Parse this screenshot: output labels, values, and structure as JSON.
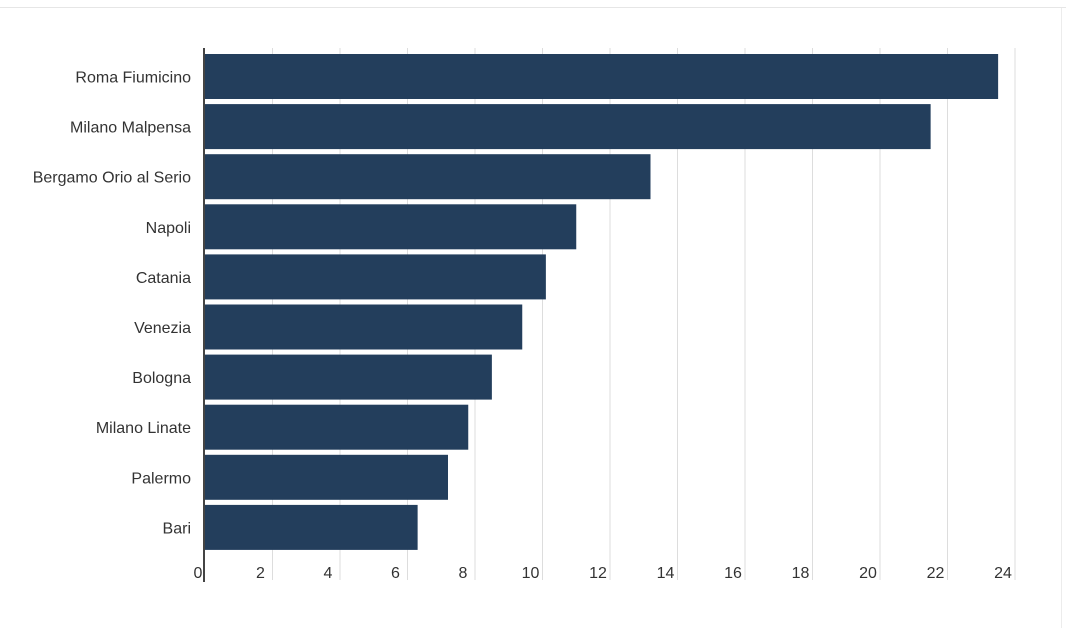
{
  "chart_data": {
    "type": "bar",
    "orientation": "horizontal",
    "categories": [
      "Roma Fiumicino",
      "Milano Malpensa",
      "Bergamo Orio al Serio",
      "Napoli",
      "Catania",
      "Venezia",
      "Bologna",
      "Milano Linate",
      "Palermo",
      "Bari"
    ],
    "values": [
      23.5,
      21.5,
      13.2,
      11.0,
      10.1,
      9.4,
      8.5,
      7.8,
      7.2,
      6.3
    ],
    "xticks": [
      "0",
      "2",
      "4",
      "6",
      "8",
      "10",
      "12",
      "14",
      "16",
      "18",
      "20",
      "22",
      "24"
    ],
    "xlim": [
      0,
      24.5
    ],
    "title": "",
    "xlabel": "",
    "ylabel": "",
    "grid": "vertical",
    "legend": "none",
    "colors": {
      "bar": "#233e5c",
      "grid": "#dddddd",
      "axis": "#444444",
      "text": "#333333"
    }
  }
}
